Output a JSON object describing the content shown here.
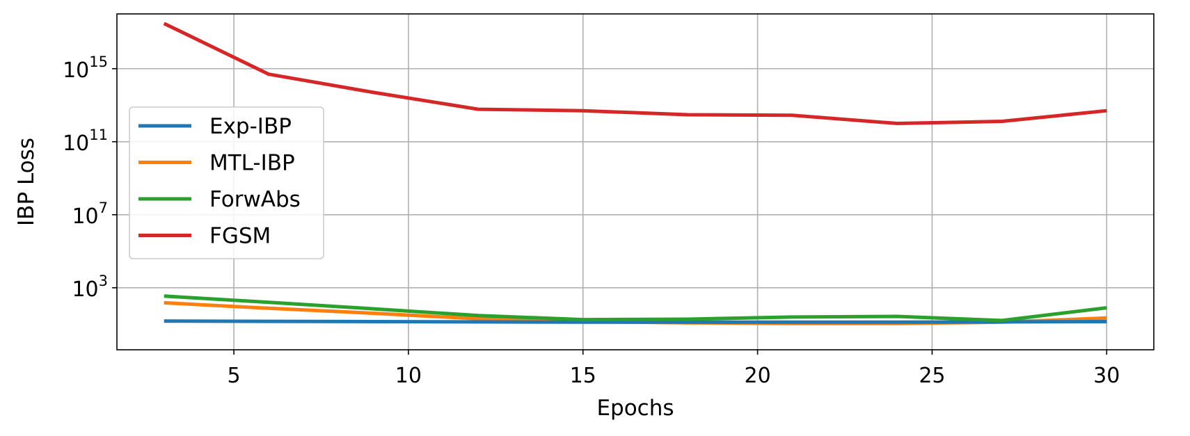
{
  "chart_data": {
    "type": "line",
    "title": "",
    "xlabel": "Epochs",
    "ylabel": "IBP Loss",
    "y_scale": "log",
    "xlim": [
      1.65,
      31.35
    ],
    "ylim": [
      0.4,
      1e+18
    ],
    "x_ticks": [
      5,
      10,
      15,
      20,
      25,
      30
    ],
    "y_ticks": [
      {
        "value": 1000,
        "base": "10",
        "exp": "3"
      },
      {
        "value": 10000000.0,
        "base": "10",
        "exp": "7"
      },
      {
        "value": 100000000000.0,
        "base": "10",
        "exp": "11"
      },
      {
        "value": 1000000000000000.0,
        "base": "10",
        "exp": "15"
      }
    ],
    "grid": true,
    "legend_position": "center-left",
    "x": [
      3,
      6,
      9,
      12,
      15,
      18,
      21,
      24,
      27,
      30
    ],
    "series": [
      {
        "name": "Exp-IBP",
        "color": "#1f77b4",
        "values": [
          15,
          14.5,
          14,
          13.5,
          13,
          13,
          13,
          13,
          13.5,
          14
        ]
      },
      {
        "name": "MTL-IBP",
        "color": "#ff7f0e",
        "values": [
          150,
          75,
          40,
          20,
          14,
          12,
          11,
          11,
          13,
          22
        ]
      },
      {
        "name": "ForwAbs",
        "color": "#2ca02c",
        "values": [
          350,
          160,
          70,
          30,
          18,
          19,
          25,
          27,
          16,
          80
        ]
      },
      {
        "name": "FGSM",
        "color": "#d62728",
        "values": [
          3e+17,
          500000000000000.0,
          50000000000000.0,
          6000000000000.0,
          5000000000000.0,
          3000000000000.0,
          2800000000000.0,
          1000000000000.0,
          1300000000000.0,
          5000000000000.0
        ]
      }
    ]
  }
}
